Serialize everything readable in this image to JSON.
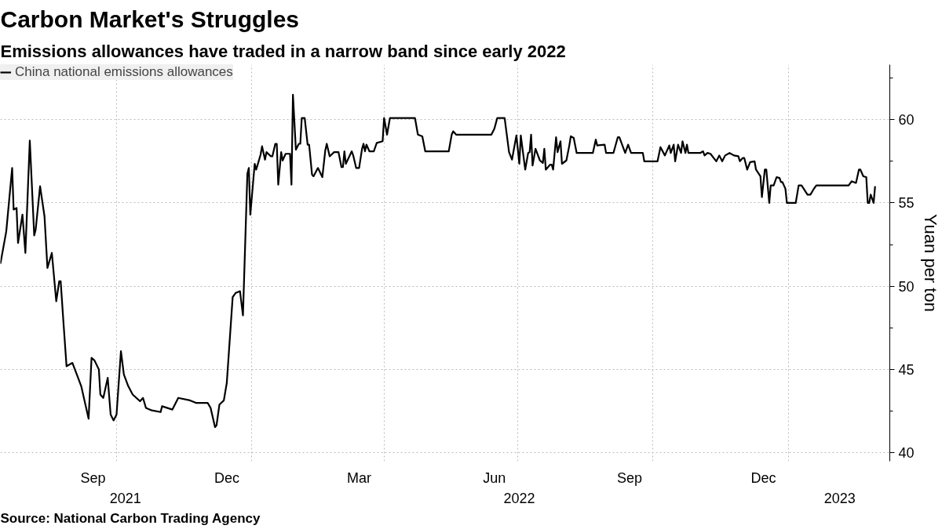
{
  "chart_data": {
    "type": "line",
    "title": "Carbon Market's Struggles",
    "subtitle": "Emissions allowances have traded in a narrow band since early 2022",
    "ylabel": "Yuan per ton",
    "annotations": [
      "Source: National Carbon Trading Agency"
    ],
    "legend": "top left",
    "grid": true,
    "line_style": "solid",
    "xlim": [
      "2021-07-14",
      "2023-03-11"
    ],
    "ylim": [
      39.5,
      63.3
    ],
    "xticks": [
      {
        "value": "2021-10-01",
        "label": null
      },
      {
        "value": "2022-01-01",
        "label": null
      },
      {
        "value": "2022-04-01",
        "label": null
      },
      {
        "value": "2022-07-01",
        "label": null
      },
      {
        "value": "2022-10-01",
        "label": null
      },
      {
        "value": "2023-01-01",
        "label": null
      },
      {
        "value": "2021-09-15",
        "label": "Sep"
      },
      {
        "value": "2021-12-15",
        "label": "Dec"
      },
      {
        "value": "2022-03-15",
        "label": "Mar"
      },
      {
        "value": "2022-06-15",
        "label": "Jun"
      },
      {
        "value": "2022-09-15",
        "label": "Sep"
      },
      {
        "value": "2022-12-15",
        "label": "Dec"
      }
    ],
    "x2lim": [
      "2021-07-14",
      "2023-03-11"
    ],
    "x2ticks": [
      {
        "value": "2021-10-07",
        "label": "2021"
      },
      {
        "value": "2022-07-02",
        "label": "2022"
      },
      {
        "value": "2023-02-05",
        "label": "2023"
      }
    ],
    "yticks": [
      40,
      {
        "value": 42.5,
        "label": null
      },
      45,
      {
        "value": 47.5,
        "label": null
      },
      50,
      {
        "value": 52.5,
        "label": null
      },
      55,
      {
        "value": 57.5,
        "label": null
      },
      60,
      {
        "value": 62.5,
        "label": null
      }
    ],
    "x": [
      "2021-07-14",
      "2021-07-18",
      "2021-07-22",
      "2021-07-23",
      "2021-07-25",
      "2021-07-26",
      "2021-07-29",
      "2021-07-31",
      "2021-08-03",
      "2021-08-06",
      "2021-08-07",
      "2021-08-10",
      "2021-08-13",
      "2021-08-15",
      "2021-08-18",
      "2021-08-21",
      "2021-08-23",
      "2021-08-24",
      "2021-08-26",
      "2021-08-28",
      "2021-09-01",
      "2021-09-04",
      "2021-09-07",
      "2021-09-12",
      "2021-09-14",
      "2021-09-16",
      "2021-09-19",
      "2021-09-20",
      "2021-09-22",
      "2021-09-25",
      "2021-09-27",
      "2021-09-29",
      "2021-10-01",
      "2021-10-04",
      "2021-10-06",
      "2021-10-09",
      "2021-10-12",
      "2021-10-17",
      "2021-10-19",
      "2021-10-21",
      "2021-10-25",
      "2021-10-31",
      "2021-11-01",
      "2021-11-08",
      "2021-11-12",
      "2021-11-20",
      "2021-11-24",
      "2021-12-02",
      "2021-12-04",
      "2021-12-07",
      "2021-12-08",
      "2021-12-10",
      "2021-12-13",
      "2021-12-15",
      "2021-12-19",
      "2021-12-21",
      "2021-12-24",
      "2021-12-26",
      "2021-12-29",
      "2021-12-30",
      "2021-12-31",
      "2022-01-03",
      "2022-01-04",
      "2022-01-07",
      "2022-01-08",
      "2022-01-10",
      "2022-01-11",
      "2022-01-14",
      "2022-01-15",
      "2022-01-17",
      "2022-01-18",
      "2022-01-19",
      "2022-01-21",
      "2022-01-22",
      "2022-01-24",
      "2022-01-27",
      "2022-01-28",
      "2022-01-29",
      "2022-01-31",
      "2022-02-02",
      "2022-02-03",
      "2022-02-04",
      "2022-02-06",
      "2022-02-08",
      "2022-02-09",
      "2022-02-11",
      "2022-02-12",
      "2022-02-15",
      "2022-02-18",
      "2022-02-20",
      "2022-02-21",
      "2022-02-23",
      "2022-02-26",
      "2022-03-01",
      "2022-03-03",
      "2022-03-04",
      "2022-03-05",
      "2022-03-06",
      "2022-03-10",
      "2022-03-11",
      "2022-03-13",
      "2022-03-15",
      "2022-03-17",
      "2022-03-18",
      "2022-03-19",
      "2022-03-20",
      "2022-03-22",
      "2022-03-25",
      "2022-03-27",
      "2022-03-31",
      "2022-04-01",
      "2022-04-03",
      "2022-04-05",
      "2022-04-22",
      "2022-04-24",
      "2022-04-27",
      "2022-04-29",
      "2022-05-15",
      "2022-05-17",
      "2022-05-18",
      "2022-05-20",
      "2022-06-13",
      "2022-06-15",
      "2022-06-17",
      "2022-06-22",
      "2022-06-25",
      "2022-06-27",
      "2022-06-30",
      "2022-07-02",
      "2022-07-03",
      "2022-07-06",
      "2022-07-08",
      "2022-07-09",
      "2022-07-10",
      "2022-07-11",
      "2022-07-13",
      "2022-07-16",
      "2022-07-18",
      "2022-07-19",
      "2022-07-20",
      "2022-07-23",
      "2022-07-24",
      "2022-07-25",
      "2022-07-27",
      "2022-07-28",
      "2022-07-30",
      "2022-07-31",
      "2022-08-03",
      "2022-08-05",
      "2022-08-06",
      "2022-08-08",
      "2022-08-10",
      "2022-08-21",
      "2022-08-23",
      "2022-08-24",
      "2022-08-29",
      "2022-08-30",
      "2022-09-04",
      "2022-09-07",
      "2022-09-08",
      "2022-09-12",
      "2022-09-14",
      "2022-09-16",
      "2022-09-24",
      "2022-09-25",
      "2022-10-04",
      "2022-10-06",
      "2022-10-09",
      "2022-10-12",
      "2022-10-13",
      "2022-10-15",
      "2022-10-16",
      "2022-10-18",
      "2022-10-20",
      "2022-10-21",
      "2022-10-23",
      "2022-10-24",
      "2022-10-25",
      "2022-11-02",
      "2022-11-04",
      "2022-11-05",
      "2022-11-07",
      "2022-11-09",
      "2022-11-13",
      "2022-11-15",
      "2022-11-17",
      "2022-11-19",
      "2022-11-22",
      "2022-11-25",
      "2022-11-28",
      "2022-11-29",
      "2022-12-01",
      "2022-12-02",
      "2022-12-04",
      "2022-12-06",
      "2022-12-09",
      "2022-12-10",
      "2022-12-13",
      "2022-12-14",
      "2022-12-16",
      "2022-12-17",
      "2022-12-19",
      "2022-12-20",
      "2022-12-22",
      "2022-12-24",
      "2022-12-26",
      "2022-12-27",
      "2022-12-28",
      "2022-12-30",
      "2022-12-31",
      "2023-01-06",
      "2023-01-08",
      "2023-01-10",
      "2023-01-14",
      "2023-01-16",
      "2023-01-18",
      "2023-01-20",
      "2023-02-11",
      "2023-02-13",
      "2023-02-16",
      "2023-02-18",
      "2023-02-19",
      "2023-02-21",
      "2023-02-23",
      "2023-02-24",
      "2023-02-25",
      "2023-02-26",
      "2023-02-28",
      "2023-03-01"
    ],
    "series": [
      {
        "name": "China national emissions allowances",
        "color": "#000000",
        "values": [
          51.35,
          53.3,
          57.1,
          54.6,
          54.7,
          52.6,
          54.3,
          52.0,
          58.75,
          53.05,
          53.4,
          56.0,
          54.2,
          51.1,
          52.0,
          49.1,
          50.3,
          50.3,
          47.7,
          45.2,
          45.4,
          44.7,
          44.0,
          42.05,
          45.7,
          45.55,
          45.0,
          43.5,
          43.3,
          44.5,
          42.3,
          41.95,
          42.3,
          46.1,
          44.7,
          44.0,
          43.5,
          43.1,
          43.3,
          42.7,
          42.55,
          42.45,
          42.8,
          42.6,
          43.3,
          43.15,
          43.0,
          43.0,
          42.7,
          41.55,
          41.65,
          42.9,
          43.15,
          44.2,
          49.35,
          49.6,
          49.7,
          48.25,
          56.75,
          57.1,
          54.3,
          57.35,
          57.0,
          57.9,
          58.4,
          57.6,
          58.05,
          57.8,
          57.8,
          58.55,
          58.55,
          56.1,
          58.05,
          57.55,
          57.95,
          57.95,
          56.1,
          61.5,
          58.2,
          58.55,
          58.55,
          60.1,
          60.1,
          58.5,
          58.5,
          56.7,
          56.6,
          57.1,
          56.55,
          58.15,
          58.55,
          57.8,
          58.05,
          58.05,
          57.15,
          57.15,
          58.1,
          57.35,
          58.1,
          57.85,
          57.1,
          57.1,
          58.25,
          58.55,
          58.1,
          58.5,
          58.1,
          58.1,
          58.6,
          58.7,
          60.1,
          59.1,
          60.1,
          60.1,
          59.1,
          59.0,
          58.1,
          58.1,
          59.1,
          59.3,
          59.1,
          59.1,
          59.45,
          60.1,
          60.1,
          58.05,
          57.6,
          59.05,
          57.35,
          59.05,
          57.0,
          58.0,
          58.05,
          59.1,
          57.25,
          58.25,
          57.55,
          57.4,
          58.25,
          57.0,
          57.3,
          57.3,
          57.0,
          58.95,
          58.05,
          58.7,
          57.35,
          57.55,
          58.45,
          59.0,
          58.9,
          58.0,
          58.0,
          58.8,
          58.45,
          58.5,
          58.0,
          58.0,
          58.95,
          58.95,
          58.0,
          58.5,
          58.0,
          58.0,
          57.5,
          57.5,
          58.35,
          57.85,
          58.45,
          58.0,
          58.5,
          57.5,
          58.5,
          58.0,
          58.7,
          58.0,
          58.5,
          58.0,
          58.0,
          58.1,
          57.85,
          58.0,
          57.95,
          57.5,
          57.85,
          57.5,
          57.85,
          58.0,
          57.85,
          57.8,
          57.5,
          57.7,
          57.7,
          57.0,
          57.45,
          57.5,
          57.0,
          56.6,
          55.35,
          57.0,
          57.0,
          55.0,
          56.05,
          56.05,
          56.55,
          56.5,
          56.25,
          56.25,
          55.85,
          55.0,
          55.0,
          56.05,
          56.05,
          55.5,
          55.5,
          55.8,
          56.05,
          56.05,
          56.3,
          56.2,
          57.0,
          57.0,
          56.6,
          56.55,
          55.0,
          55.0,
          55.5,
          55.0,
          56.0
        ]
      }
    ]
  }
}
